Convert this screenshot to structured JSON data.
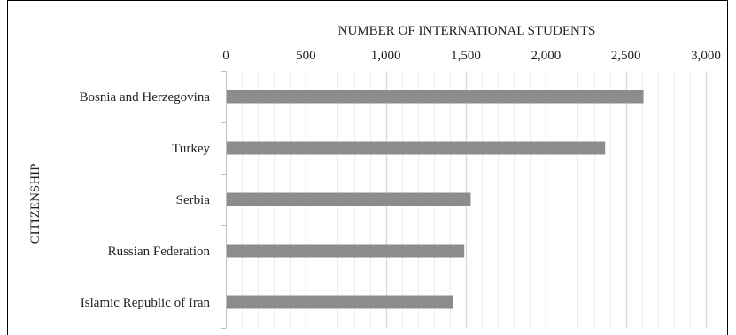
{
  "chart_data": {
    "type": "bar",
    "orientation": "horizontal",
    "title": "",
    "xlabel": "NUMBER OF INTERNATIONAL STUDENTS",
    "ylabel": "CITIZENSHIP",
    "categories": [
      "Bosnia and Herzegovina",
      "Turkey",
      "Serbia",
      "Russian Federation",
      "Islamic Republic of Iran"
    ],
    "values": [
      2610,
      2370,
      1530,
      1490,
      1420
    ],
    "xlim": [
      0,
      3000
    ],
    "xticks": [
      0,
      500,
      1000,
      1500,
      2000,
      2500,
      3000
    ],
    "xtick_labels": [
      "0",
      "500",
      "1,000",
      "1,500",
      "2,000",
      "2,500",
      "3,000"
    ],
    "x_axis_position": "top",
    "major_gridlines": true,
    "minor_gridlines": true,
    "legend": "none",
    "bar_color": "#8c8c8c",
    "major_grid_color": "#d9d9d9",
    "minor_grid_color": "#ececec",
    "axis_color": "#bfbfbf",
    "border_color": "#000000"
  }
}
